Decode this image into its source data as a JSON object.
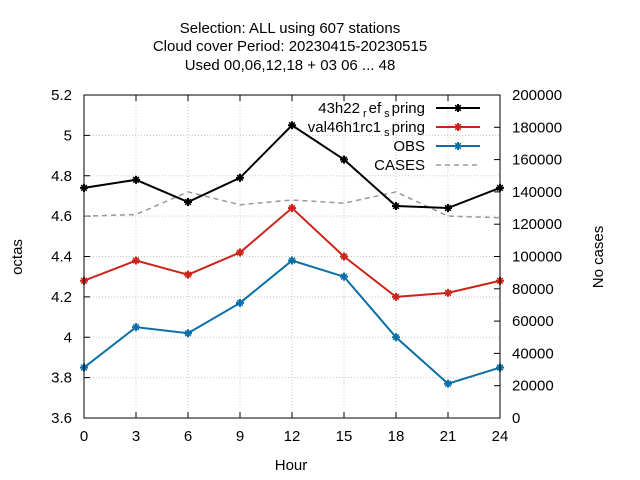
{
  "chart_data": {
    "type": "line",
    "title": [
      "Selection: ALL using   607 stations",
      "Cloud cover   Period: 20230415-20230515",
      "Used  00,06,12,18  + 03 06 ... 48"
    ],
    "xlabel": "Hour",
    "ylabel": "octas",
    "y2label": "No cases",
    "x": [
      0,
      3,
      6,
      9,
      12,
      15,
      18,
      21,
      24
    ],
    "xlim": [
      0,
      24
    ],
    "xticks": [
      "0",
      "3",
      "6",
      "9",
      "12",
      "15",
      "18",
      "21",
      "24"
    ],
    "ylim": [
      3.6,
      5.2
    ],
    "yticks": [
      "3.6",
      "3.8",
      "4",
      "4.2",
      "4.4",
      "4.6",
      "4.8",
      "5",
      "5.2"
    ],
    "y2lim": [
      0,
      200000
    ],
    "y2ticks": [
      "0",
      "20000",
      "40000",
      "60000",
      "80000",
      "100000",
      "120000",
      "140000",
      "160000",
      "180000",
      "200000"
    ],
    "grid": true,
    "legend_position": "top-right",
    "series": [
      {
        "name_parts": [
          {
            "text": "43h22",
            "sub": false
          },
          {
            "text": "r",
            "sub": true
          },
          {
            "text": "ef",
            "sub": false
          },
          {
            "text": "s",
            "sub": true
          },
          {
            "text": "pring",
            "sub": false
          }
        ],
        "axis": "y",
        "color": "#000000",
        "dashed": false,
        "marker": true,
        "values": [
          4.74,
          4.78,
          4.67,
          4.79,
          5.05,
          4.88,
          4.65,
          4.64,
          4.74
        ]
      },
      {
        "name_parts": [
          {
            "text": "val46h1rc1",
            "sub": false
          },
          {
            "text": "s",
            "sub": true
          },
          {
            "text": "pring",
            "sub": false
          }
        ],
        "axis": "y",
        "color": "#cc2419",
        "dashed": false,
        "marker": true,
        "values": [
          4.28,
          4.38,
          4.31,
          4.42,
          4.64,
          4.4,
          4.2,
          4.22,
          4.28
        ]
      },
      {
        "name_parts": [
          {
            "text": "OBS",
            "sub": false
          }
        ],
        "axis": "y",
        "color": "#0a6fa8",
        "dashed": false,
        "marker": true,
        "values": [
          3.85,
          4.05,
          4.02,
          4.17,
          4.38,
          4.3,
          4.0,
          3.77,
          3.85
        ]
      },
      {
        "name_parts": [
          {
            "text": "CASES",
            "sub": false
          }
        ],
        "axis": "y2",
        "color": "#999999",
        "dashed": true,
        "marker": false,
        "values": [
          125000,
          126000,
          140000,
          132000,
          135000,
          133000,
          140000,
          125000,
          124000
        ]
      }
    ]
  }
}
